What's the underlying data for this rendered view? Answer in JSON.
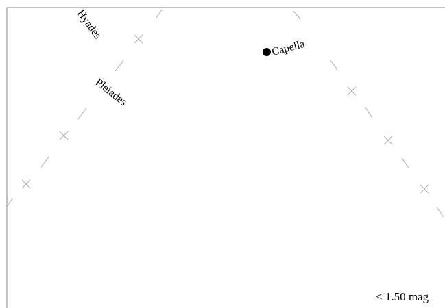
{
  "chart_data": {
    "type": "star_chart",
    "border": "#888888",
    "track_color": "#aaaaaa",
    "labels": {
      "hyades": "Hyades",
      "pleiades": "Pleiades",
      "capella": "Capella"
    },
    "legend": "< 1.50 mag"
  }
}
